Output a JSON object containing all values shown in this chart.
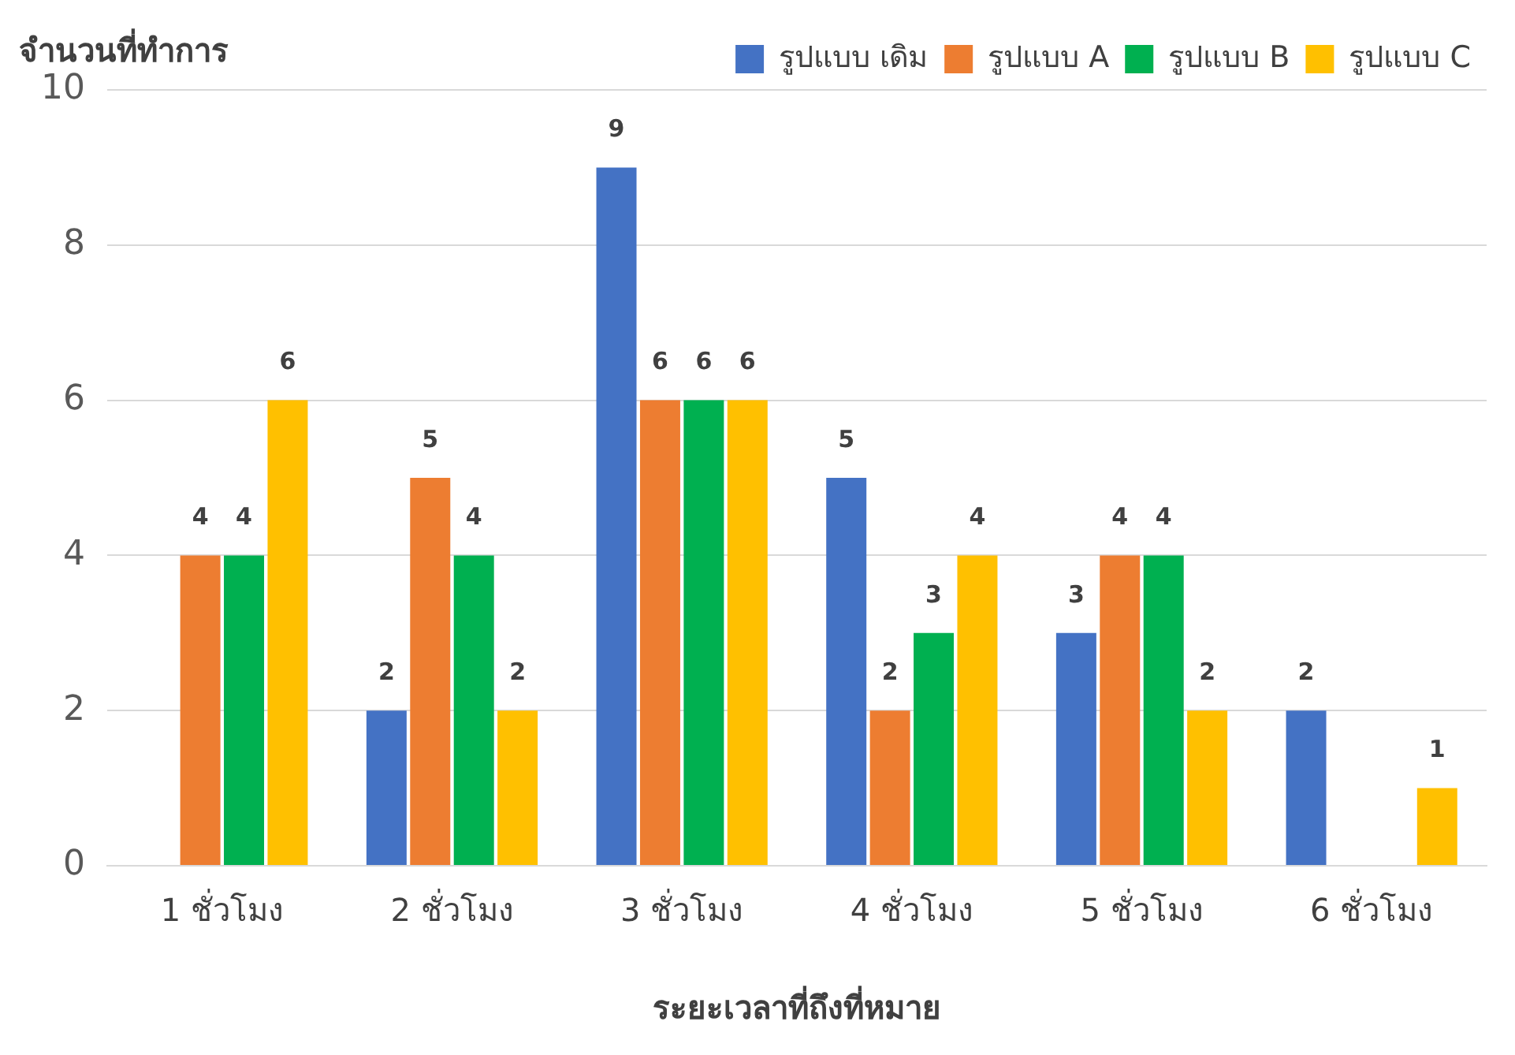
{
  "chart_data": {
    "type": "bar",
    "xlabel": "ระยะเวลาที่ถึงที่หมาย",
    "ylabel": "จำนวนที่ทำการ",
    "categories": [
      "1 ชั่วโมง",
      "2 ชั่วโมง",
      "3 ชั่วโมง",
      "4 ชั่วโมง",
      "5 ชั่วโมง",
      "6 ชั่วโมง"
    ],
    "series": [
      {
        "name": "รูปแบบ เดิม",
        "color": "#4472c4",
        "values": [
          null,
          2,
          9,
          5,
          3,
          2
        ]
      },
      {
        "name": "รูปแบบ A",
        "color": "#ed7d31",
        "values": [
          4,
          5,
          6,
          2,
          4,
          null
        ]
      },
      {
        "name": "รูปแบบ B",
        "color": "#00b050",
        "values": [
          4,
          4,
          6,
          3,
          4,
          null
        ]
      },
      {
        "name": "รูปแบบ C",
        "color": "#ffc000",
        "values": [
          6,
          2,
          6,
          4,
          2,
          1
        ]
      }
    ],
    "ylim": [
      0,
      10
    ],
    "yticks": [
      0,
      2,
      4,
      6,
      8,
      10
    ],
    "grid": "y",
    "legend": "top right",
    "data_labels": true
  }
}
